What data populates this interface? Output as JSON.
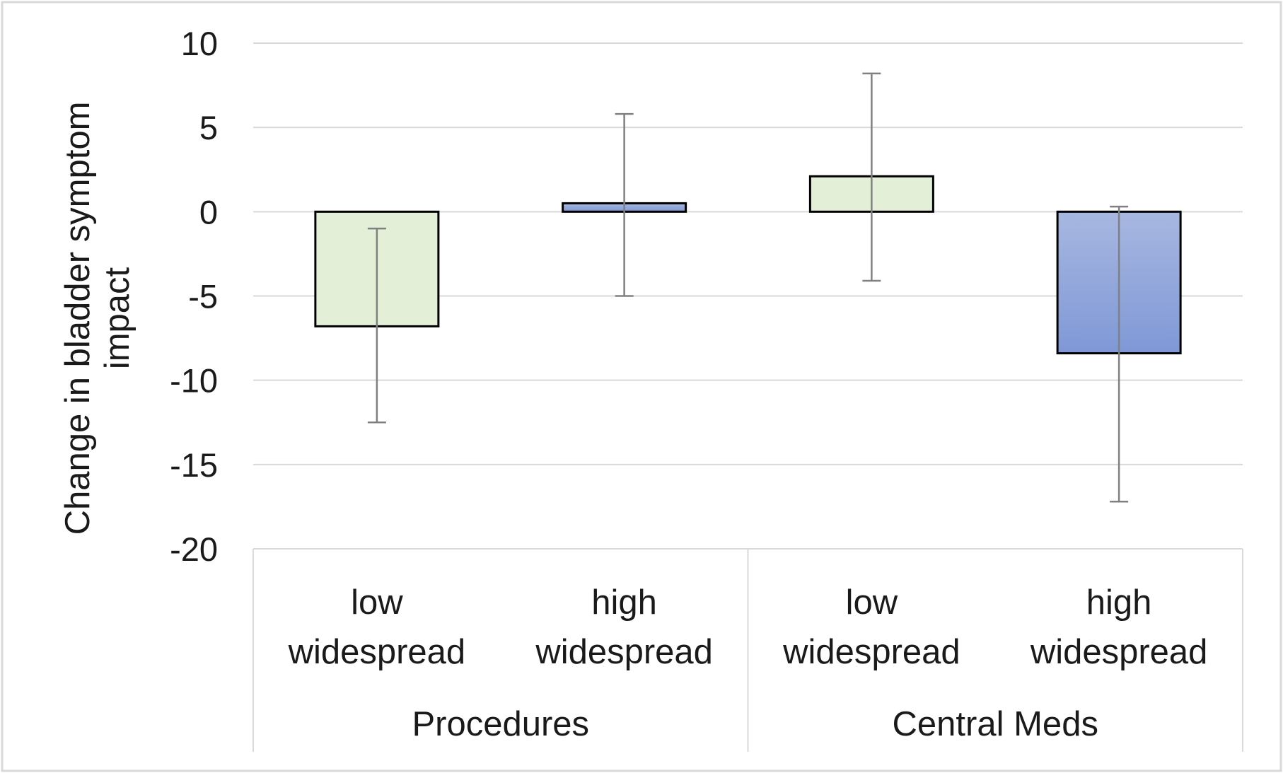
{
  "chart_data": {
    "type": "bar",
    "ylabel_lines": [
      "Change in bladder symptom",
      "impact"
    ],
    "ylim": [
      -20,
      10
    ],
    "yticks": [
      10,
      5,
      0,
      -5,
      -10,
      -15,
      -20
    ],
    "grid": true,
    "groups": [
      {
        "name": "Procedures",
        "bars": [
          {
            "category_lines": [
              "low",
              "widespread"
            ],
            "value": -6.8,
            "err_low": -12.5,
            "err_high": -1.0,
            "color": "#e3efd6"
          },
          {
            "category_lines": [
              "high",
              "widespread"
            ],
            "value": 0.5,
            "err_low": -5.0,
            "err_high": 5.8,
            "color": "#8ea5d8"
          }
        ]
      },
      {
        "name": "Central Meds",
        "bars": [
          {
            "category_lines": [
              "low",
              "widespread"
            ],
            "value": 2.1,
            "err_low": -4.1,
            "err_high": 8.2,
            "color": "#e3efd6"
          },
          {
            "category_lines": [
              "high",
              "widespread"
            ],
            "value": -8.4,
            "err_low": -17.2,
            "err_high": 0.3,
            "color": "#8ea5d8"
          }
        ]
      }
    ],
    "colors": {
      "low_fill": "#e3efd6",
      "high_fill_top": "#a7b7e0",
      "high_fill_bottom": "#7f98d6",
      "bar_stroke": "#000000",
      "error_bar": "#808080",
      "gridline": "#d9d9d9",
      "axis_box": "#d9d9d9",
      "frame": "#d9d9d9"
    }
  }
}
